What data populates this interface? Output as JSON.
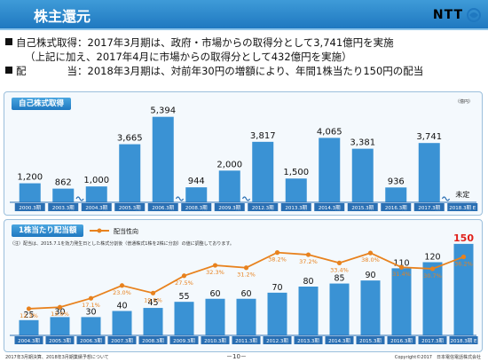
{
  "header": {
    "title": "株主還元",
    "logo": "NTT",
    "logo_icon": "ntt-logo-icon",
    "accent": "#1f78c0"
  },
  "bullets": {
    "line1": "自己株式取得：2017年3月期は、政府・市場からの取得分として3,741億円を実施",
    "line2": "（上記に加え、2017年4月に市場からの取得分として432億円を実施）",
    "line3": "配　　　　当：2018年3月期は、対前年30円の増額により、年間1株当たり150円の配当"
  },
  "chart_data": [
    {
      "type": "bar",
      "title": "自己株式取得",
      "unit": "（億円）",
      "categories": [
        "2000.3期",
        "2003.3期",
        "2004.3期",
        "2005.3期",
        "2006.3期",
        "2008.3期",
        "2009.3期",
        "2012.3期",
        "2013.3期",
        "2014.3期",
        "2015.3期",
        "2016.3期",
        "2017.3期",
        "2018.3期 E"
      ],
      "values": [
        1200,
        862,
        1000,
        3665,
        5394,
        944,
        2000,
        3817,
        1500,
        4065,
        3381,
        936,
        3741,
        null
      ],
      "value_labels": [
        "1,200",
        "862",
        "1,000",
        "3,665",
        "5,394",
        "944",
        "2,000",
        "3,817",
        "1,500",
        "4,065",
        "3,381",
        "936",
        "3,741",
        "未定"
      ],
      "ylim": [
        0,
        5600
      ],
      "bar_color": "#3a92d4",
      "grid": false
    },
    {
      "type": "bar",
      "title": "1株当たり配当額",
      "note": "（注）配当は、2015.7.1を効力発生日とした株式分割後（普通株式1株を2株に分割）の値に調整しております。",
      "legend_label": "配当性向",
      "legend_position": "top",
      "categories": [
        "2004.3期",
        "2005.3期",
        "2006.3期",
        "2007.3期",
        "2008.3期",
        "2009.3期",
        "2010.3期",
        "2011.3期",
        "2012.3期",
        "2013.3期",
        "2014.3期",
        "2015.3期",
        "2016.3期",
        "2017.3期",
        "2018.3期 E"
      ],
      "values": [
        25,
        30,
        30,
        40,
        45,
        55,
        60,
        60,
        70,
        80,
        85,
        90,
        110,
        120,
        150
      ],
      "value_labels": [
        "25",
        "30",
        "30",
        "40",
        "45",
        "55",
        "60",
        "60",
        "70",
        "80",
        "85",
        "90",
        "110",
        "120",
        "150"
      ],
      "highlight_index": 14,
      "highlight_color": "#e0201a",
      "line_series": {
        "name": "配当性向",
        "values": [
          12.3,
          13.0,
          17.1,
          23.0,
          19.5,
          27.5,
          32.3,
          31.2,
          38.2,
          37.2,
          33.4,
          38.0,
          31.4,
          30.7,
          36.2
        ],
        "labels": [
          "12.3%",
          "13.0%",
          "17.1%",
          "23.0%",
          "19.5%",
          "27.5%",
          "32.3%",
          "31.2%",
          "38.2%",
          "37.2%",
          "33.4%",
          "38.0%",
          "31.4%",
          "30.7%",
          "36.2%"
        ],
        "color": "#e8821e",
        "ylim": [
          0,
          45
        ]
      },
      "ylim": [
        0,
        160
      ],
      "bar_color": "#3a92d4",
      "grid": false
    }
  ],
  "footer": {
    "left": "2017年3月期決算、2018年3月期業績予想について",
    "center": "－10－",
    "right": "Copyright©2017　日本電信電話株式会社"
  }
}
